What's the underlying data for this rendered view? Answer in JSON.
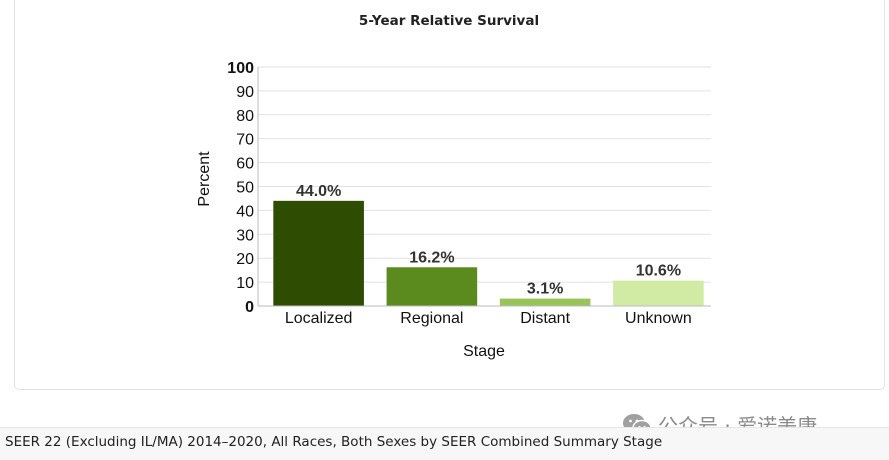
{
  "chart_data": {
    "type": "bar",
    "title": "5-Year Relative Survival",
    "xlabel": "Stage",
    "ylabel": "Percent",
    "categories": [
      "Localized",
      "Regional",
      "Distant",
      "Unknown"
    ],
    "values": [
      44.0,
      16.2,
      3.1,
      10.6
    ],
    "data_labels": [
      "44.0%",
      "16.2%",
      "3.1%",
      "10.6%"
    ],
    "colors": [
      "#2e4d02",
      "#5b8a1f",
      "#99c45a",
      "#d2eba4"
    ],
    "ylim": [
      0,
      100
    ],
    "yticks": [
      0,
      10,
      20,
      30,
      40,
      50,
      60,
      70,
      80,
      90,
      100
    ],
    "grid": true,
    "legend": "none"
  },
  "caption": "SEER 22 (Excluding IL/MA) 2014–2020, All Races, Both Sexes by SEER Combined Summary Stage",
  "watermark": {
    "text": "公众号 · 爱诺美康",
    "icon": "wechat-icon"
  }
}
